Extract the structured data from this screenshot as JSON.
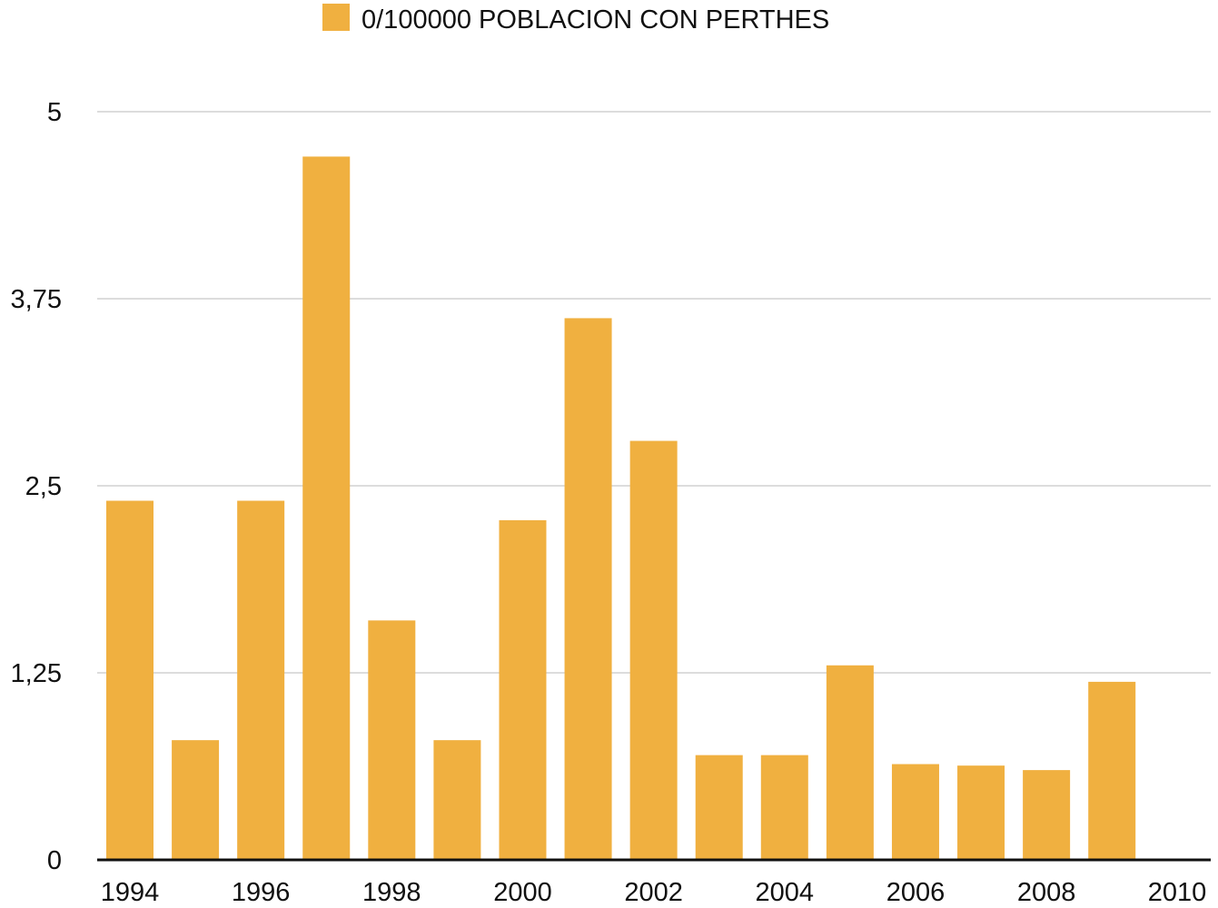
{
  "chart_data": {
    "type": "bar",
    "legend": {
      "label": "0/100000 POBLACION CON PERTHES",
      "position": "top-center"
    },
    "bar_color": "#F0B040",
    "x_tick_labels": [
      "1994",
      "1996",
      "1998",
      "2000",
      "2002",
      "2004",
      "2006",
      "2008",
      "2010"
    ],
    "categories": [
      1994,
      1995,
      1996,
      1997,
      1998,
      1999,
      2000,
      2001,
      2002,
      2003,
      2004,
      2005,
      2006,
      2007,
      2008,
      2009
    ],
    "values": [
      2.4,
      0.8,
      2.4,
      4.7,
      1.6,
      0.8,
      2.27,
      3.62,
      2.8,
      0.7,
      0.7,
      1.3,
      0.64,
      0.63,
      0.6,
      1.19
    ],
    "y_tick_labels": [
      "0",
      "1,25",
      "2,5",
      "3,75",
      "5"
    ],
    "y_ticks": [
      0,
      1.25,
      2.5,
      3.75,
      5
    ],
    "ylim": [
      0,
      5
    ],
    "xlim": [
      1994,
      2010
    ],
    "grid": true
  }
}
